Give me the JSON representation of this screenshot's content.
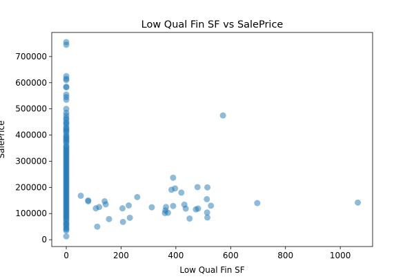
{
  "chart_data": {
    "type": "scatter",
    "title": "Low Qual Fin SF vs SalePrice",
    "x_label": "Low Qual Fin SF",
    "y_label": "SalePrice",
    "color": "#1f77b4",
    "x": [
      0,
      0,
      0,
      0,
      0,
      0,
      0,
      0,
      0,
      0,
      0,
      0,
      0,
      0,
      0,
      0,
      0,
      0,
      0,
      0,
      0,
      0,
      0,
      0,
      0,
      0,
      0,
      0,
      0,
      0,
      0,
      0,
      0,
      0,
      0,
      0,
      0,
      0,
      0,
      0,
      0,
      0,
      0,
      0,
      0,
      0,
      0,
      0,
      0,
      0,
      0,
      0,
      0,
      0,
      0,
      0,
      0,
      0,
      0,
      0,
      0,
      0,
      0,
      0,
      0,
      0,
      0,
      0,
      0,
      0,
      0,
      0,
      0,
      0,
      0,
      0,
      0,
      0,
      0,
      0,
      0,
      0,
      0,
      0,
      0,
      0,
      0,
      0,
      0,
      0,
      0,
      0,
      0,
      0,
      0,
      0,
      53,
      80,
      80,
      108,
      113,
      120,
      140,
      144,
      156,
      205,
      207,
      228,
      232,
      259,
      312,
      360,
      362,
      364,
      371,
      384,
      390,
      390,
      397,
      420,
      431,
      436,
      450,
      473,
      479,
      481,
      513,
      514,
      515,
      515,
      528,
      572,
      697,
      1064
    ],
    "values": [
      13000,
      35000,
      40000,
      45000,
      52000,
      58000,
      62000,
      68000,
      75000,
      80000,
      85000,
      90000,
      95000,
      100000,
      105000,
      110000,
      115000,
      120000,
      125000,
      130000,
      135000,
      140000,
      145000,
      150000,
      155000,
      160000,
      165000,
      170000,
      175000,
      180000,
      185000,
      190000,
      195000,
      200000,
      205000,
      210000,
      215000,
      220000,
      225000,
      230000,
      235000,
      240000,
      245000,
      250000,
      255000,
      260000,
      265000,
      270000,
      275000,
      280000,
      285000,
      290000,
      295000,
      300000,
      305000,
      310000,
      315000,
      320000,
      325000,
      330000,
      335000,
      340000,
      345000,
      350000,
      355000,
      360000,
      370000,
      375000,
      380000,
      385000,
      390000,
      395000,
      400000,
      410000,
      415000,
      420000,
      425000,
      430000,
      440000,
      445000,
      450000,
      460000,
      465000,
      475000,
      485000,
      500000,
      535000,
      545000,
      555000,
      582000,
      585000,
      610000,
      615000,
      625000,
      745000,
      755000,
      168000,
      150000,
      147000,
      120000,
      50000,
      125000,
      147000,
      135000,
      79000,
      120000,
      68000,
      131000,
      84000,
      163000,
      124000,
      102000,
      112000,
      125000,
      103000,
      191000,
      237000,
      129000,
      196000,
      180000,
      134000,
      119000,
      81000,
      116000,
      201000,
      119000,
      155000,
      104000,
      85000,
      200000,
      130000,
      475000,
      140000,
      142000
    ],
    "xlim": [
      -53,
      1118
    ],
    "ylim": [
      -26000,
      792000
    ],
    "xticks": [
      0,
      200,
      400,
      600,
      800,
      1000
    ],
    "yticks": [
      0,
      100000,
      200000,
      300000,
      400000,
      500000,
      600000,
      700000
    ]
  }
}
